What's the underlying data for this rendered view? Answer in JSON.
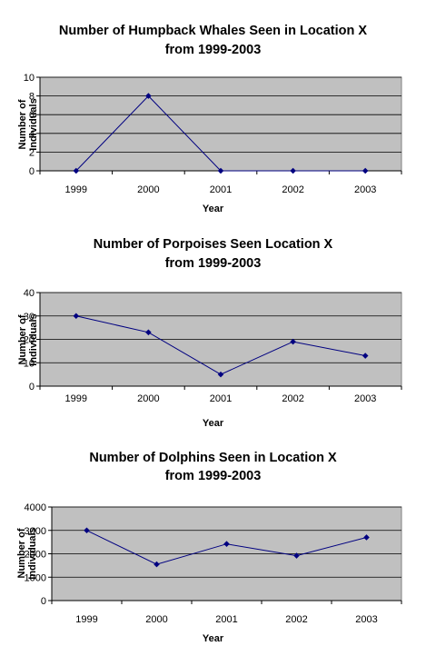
{
  "chart_data": [
    {
      "type": "line",
      "title_lines": [
        "Number of Humpback Whales Seen in Location X",
        "from 1999-2003"
      ],
      "xlabel": "Year",
      "ylabel_lines": [
        "Number of",
        "Individuals"
      ],
      "categories": [
        "1999",
        "2000",
        "2001",
        "2002",
        "2003"
      ],
      "series": [
        {
          "values": [
            0,
            8,
            0,
            0,
            0
          ]
        }
      ],
      "ylim": [
        0,
        10
      ],
      "yticks": [
        0,
        2,
        4,
        6,
        8,
        10
      ],
      "grid": true,
      "legend": "none"
    },
    {
      "type": "line",
      "title_lines": [
        "Number of Porpoises Seen Location X",
        "from 1999-2003"
      ],
      "xlabel": "Year",
      "ylabel_lines": [
        "Number of",
        "Individuals"
      ],
      "categories": [
        "1999",
        "2000",
        "2001",
        "2002",
        "2003"
      ],
      "series": [
        {
          "values": [
            30,
            23,
            5,
            19,
            13
          ]
        }
      ],
      "ylim": [
        0,
        40
      ],
      "yticks": [
        0,
        10,
        20,
        30,
        40
      ],
      "grid": true,
      "legend": "none"
    },
    {
      "type": "line",
      "title_lines": [
        "Number of Dolphins Seen in Location X",
        "from 1999-2003"
      ],
      "xlabel": "Year",
      "ylabel_lines": [
        "Number of",
        "Individuals"
      ],
      "categories": [
        "1999",
        "2000",
        "2001",
        "2002",
        "2003"
      ],
      "series": [
        {
          "values": [
            3000,
            1550,
            2420,
            1920,
            2700
          ]
        }
      ],
      "ylim": [
        0,
        4000
      ],
      "yticks": [
        0,
        1000,
        2000,
        3000,
        4000
      ],
      "grid": true,
      "legend": "none"
    }
  ],
  "colors": {
    "plot_area": "#c0c0c0",
    "gridline": "#000000",
    "series_line": "#000080",
    "marker": "#000080"
  }
}
